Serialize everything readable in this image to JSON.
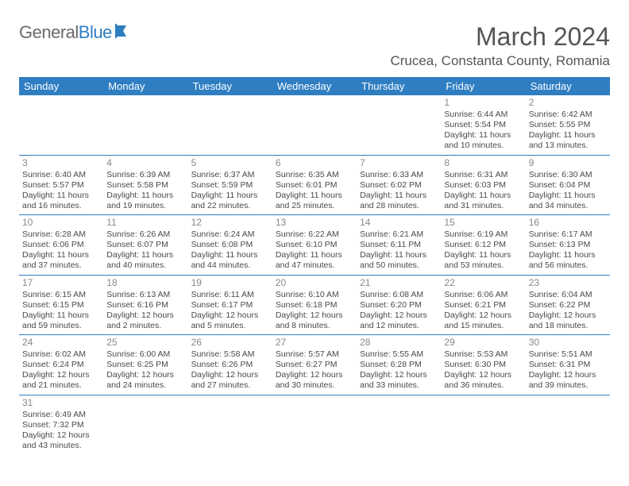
{
  "logo": {
    "word1": "General",
    "word2": "Blue"
  },
  "title": "March 2024",
  "location": "Crucea, Constanta County, Romania",
  "day_headers": [
    "Sunday",
    "Monday",
    "Tuesday",
    "Wednesday",
    "Thursday",
    "Friday",
    "Saturday"
  ],
  "colors": {
    "header_bg": "#2f7ec2",
    "header_text": "#ffffff",
    "border": "#2f7ec2",
    "body_text": "#4a4a4a",
    "daynum": "#888888",
    "logo_gray": "#6a6a6a",
    "logo_blue": "#2f7ec2"
  },
  "weeks": [
    [
      null,
      null,
      null,
      null,
      null,
      {
        "n": "1",
        "sunrise": "Sunrise: 6:44 AM",
        "sunset": "Sunset: 5:54 PM",
        "day1": "Daylight: 11 hours",
        "day2": "and 10 minutes."
      },
      {
        "n": "2",
        "sunrise": "Sunrise: 6:42 AM",
        "sunset": "Sunset: 5:55 PM",
        "day1": "Daylight: 11 hours",
        "day2": "and 13 minutes."
      }
    ],
    [
      {
        "n": "3",
        "sunrise": "Sunrise: 6:40 AM",
        "sunset": "Sunset: 5:57 PM",
        "day1": "Daylight: 11 hours",
        "day2": "and 16 minutes."
      },
      {
        "n": "4",
        "sunrise": "Sunrise: 6:39 AM",
        "sunset": "Sunset: 5:58 PM",
        "day1": "Daylight: 11 hours",
        "day2": "and 19 minutes."
      },
      {
        "n": "5",
        "sunrise": "Sunrise: 6:37 AM",
        "sunset": "Sunset: 5:59 PM",
        "day1": "Daylight: 11 hours",
        "day2": "and 22 minutes."
      },
      {
        "n": "6",
        "sunrise": "Sunrise: 6:35 AM",
        "sunset": "Sunset: 6:01 PM",
        "day1": "Daylight: 11 hours",
        "day2": "and 25 minutes."
      },
      {
        "n": "7",
        "sunrise": "Sunrise: 6:33 AM",
        "sunset": "Sunset: 6:02 PM",
        "day1": "Daylight: 11 hours",
        "day2": "and 28 minutes."
      },
      {
        "n": "8",
        "sunrise": "Sunrise: 6:31 AM",
        "sunset": "Sunset: 6:03 PM",
        "day1": "Daylight: 11 hours",
        "day2": "and 31 minutes."
      },
      {
        "n": "9",
        "sunrise": "Sunrise: 6:30 AM",
        "sunset": "Sunset: 6:04 PM",
        "day1": "Daylight: 11 hours",
        "day2": "and 34 minutes."
      }
    ],
    [
      {
        "n": "10",
        "sunrise": "Sunrise: 6:28 AM",
        "sunset": "Sunset: 6:06 PM",
        "day1": "Daylight: 11 hours",
        "day2": "and 37 minutes."
      },
      {
        "n": "11",
        "sunrise": "Sunrise: 6:26 AM",
        "sunset": "Sunset: 6:07 PM",
        "day1": "Daylight: 11 hours",
        "day2": "and 40 minutes."
      },
      {
        "n": "12",
        "sunrise": "Sunrise: 6:24 AM",
        "sunset": "Sunset: 6:08 PM",
        "day1": "Daylight: 11 hours",
        "day2": "and 44 minutes."
      },
      {
        "n": "13",
        "sunrise": "Sunrise: 6:22 AM",
        "sunset": "Sunset: 6:10 PM",
        "day1": "Daylight: 11 hours",
        "day2": "and 47 minutes."
      },
      {
        "n": "14",
        "sunrise": "Sunrise: 6:21 AM",
        "sunset": "Sunset: 6:11 PM",
        "day1": "Daylight: 11 hours",
        "day2": "and 50 minutes."
      },
      {
        "n": "15",
        "sunrise": "Sunrise: 6:19 AM",
        "sunset": "Sunset: 6:12 PM",
        "day1": "Daylight: 11 hours",
        "day2": "and 53 minutes."
      },
      {
        "n": "16",
        "sunrise": "Sunrise: 6:17 AM",
        "sunset": "Sunset: 6:13 PM",
        "day1": "Daylight: 11 hours",
        "day2": "and 56 minutes."
      }
    ],
    [
      {
        "n": "17",
        "sunrise": "Sunrise: 6:15 AM",
        "sunset": "Sunset: 6:15 PM",
        "day1": "Daylight: 11 hours",
        "day2": "and 59 minutes."
      },
      {
        "n": "18",
        "sunrise": "Sunrise: 6:13 AM",
        "sunset": "Sunset: 6:16 PM",
        "day1": "Daylight: 12 hours",
        "day2": "and 2 minutes."
      },
      {
        "n": "19",
        "sunrise": "Sunrise: 6:11 AM",
        "sunset": "Sunset: 6:17 PM",
        "day1": "Daylight: 12 hours",
        "day2": "and 5 minutes."
      },
      {
        "n": "20",
        "sunrise": "Sunrise: 6:10 AM",
        "sunset": "Sunset: 6:18 PM",
        "day1": "Daylight: 12 hours",
        "day2": "and 8 minutes."
      },
      {
        "n": "21",
        "sunrise": "Sunrise: 6:08 AM",
        "sunset": "Sunset: 6:20 PM",
        "day1": "Daylight: 12 hours",
        "day2": "and 12 minutes."
      },
      {
        "n": "22",
        "sunrise": "Sunrise: 6:06 AM",
        "sunset": "Sunset: 6:21 PM",
        "day1": "Daylight: 12 hours",
        "day2": "and 15 minutes."
      },
      {
        "n": "23",
        "sunrise": "Sunrise: 6:04 AM",
        "sunset": "Sunset: 6:22 PM",
        "day1": "Daylight: 12 hours",
        "day2": "and 18 minutes."
      }
    ],
    [
      {
        "n": "24",
        "sunrise": "Sunrise: 6:02 AM",
        "sunset": "Sunset: 6:24 PM",
        "day1": "Daylight: 12 hours",
        "day2": "and 21 minutes."
      },
      {
        "n": "25",
        "sunrise": "Sunrise: 6:00 AM",
        "sunset": "Sunset: 6:25 PM",
        "day1": "Daylight: 12 hours",
        "day2": "and 24 minutes."
      },
      {
        "n": "26",
        "sunrise": "Sunrise: 5:58 AM",
        "sunset": "Sunset: 6:26 PM",
        "day1": "Daylight: 12 hours",
        "day2": "and 27 minutes."
      },
      {
        "n": "27",
        "sunrise": "Sunrise: 5:57 AM",
        "sunset": "Sunset: 6:27 PM",
        "day1": "Daylight: 12 hours",
        "day2": "and 30 minutes."
      },
      {
        "n": "28",
        "sunrise": "Sunrise: 5:55 AM",
        "sunset": "Sunset: 6:28 PM",
        "day1": "Daylight: 12 hours",
        "day2": "and 33 minutes."
      },
      {
        "n": "29",
        "sunrise": "Sunrise: 5:53 AM",
        "sunset": "Sunset: 6:30 PM",
        "day1": "Daylight: 12 hours",
        "day2": "and 36 minutes."
      },
      {
        "n": "30",
        "sunrise": "Sunrise: 5:51 AM",
        "sunset": "Sunset: 6:31 PM",
        "day1": "Daylight: 12 hours",
        "day2": "and 39 minutes."
      }
    ],
    [
      {
        "n": "31",
        "sunrise": "Sunrise: 6:49 AM",
        "sunset": "Sunset: 7:32 PM",
        "day1": "Daylight: 12 hours",
        "day2": "and 43 minutes."
      },
      null,
      null,
      null,
      null,
      null,
      null
    ]
  ]
}
